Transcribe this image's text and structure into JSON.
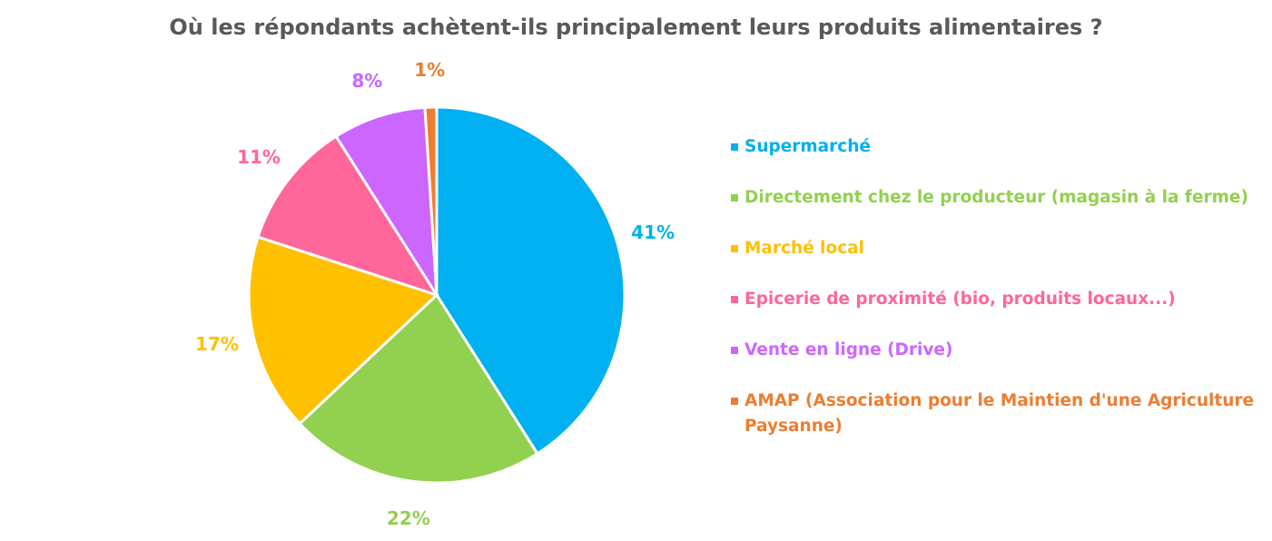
{
  "chart_data": {
    "type": "pie",
    "title": "Où les répondants achètent-ils principalement leurs produits alimentaires ?",
    "categories": [
      "Supermarché",
      "Directement chez le producteur (magasin à la ferme)",
      "Marché local",
      "Epicerie de proximité (bio, produits locaux...)",
      "Vente en ligne (Drive)",
      "AMAP (Association pour le Maintien d'une Agriculture Paysanne)"
    ],
    "values": [
      41,
      22,
      17,
      11,
      8,
      1
    ],
    "labels": [
      "41%",
      "22%",
      "17%",
      "11%",
      "8%",
      "1%"
    ],
    "colors": [
      "#00B0F0",
      "#92D050",
      "#FFC000",
      "#FF6699",
      "#CC66FF",
      "#ED7D31"
    ],
    "legend_position": "right"
  }
}
